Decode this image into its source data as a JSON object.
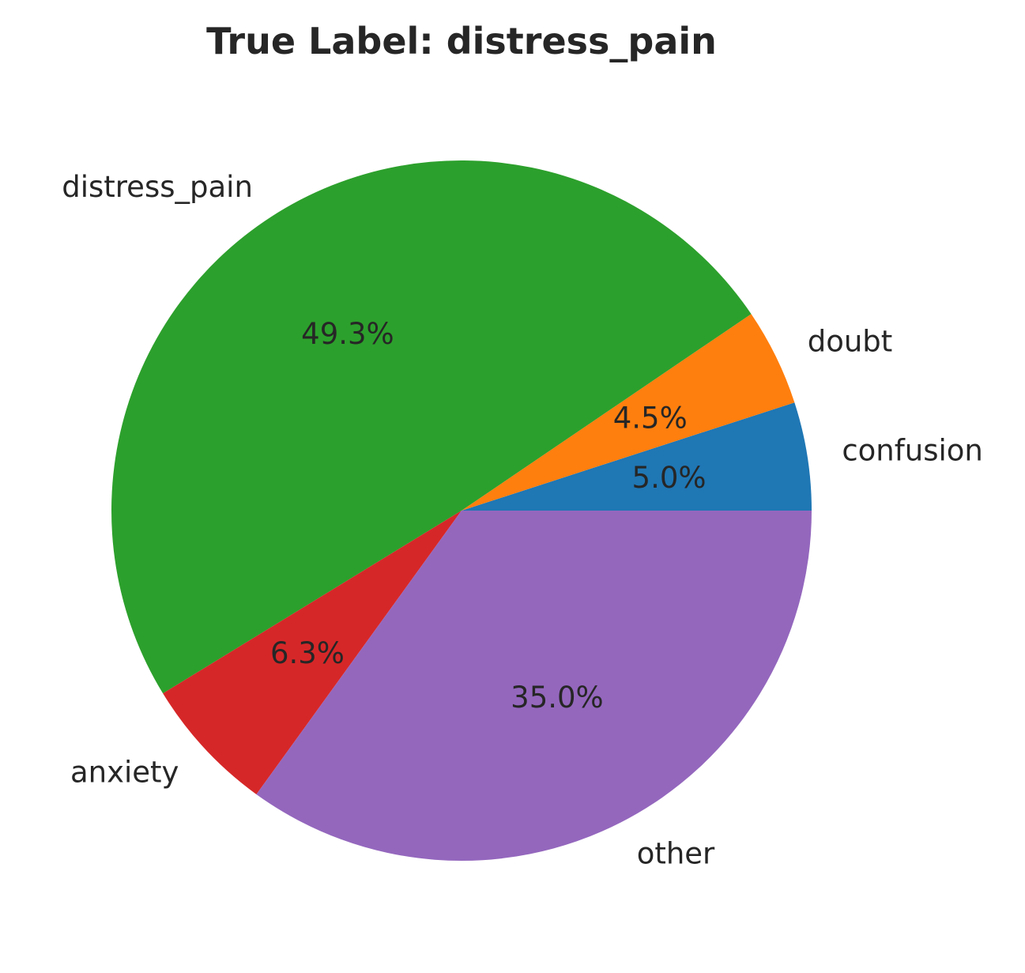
{
  "chart_data": {
    "type": "pie",
    "title": "True Label: distress_pain",
    "start_angle_deg": 0,
    "direction": "counterclockwise",
    "slices": [
      {
        "label": "confusion",
        "value": 5.0,
        "pct_label": "5.0%",
        "color": "#1f77b4"
      },
      {
        "label": "doubt",
        "value": 4.5,
        "pct_label": "4.5%",
        "color": "#ff7f0e"
      },
      {
        "label": "distress_pain",
        "value": 49.3,
        "pct_label": "49.3%",
        "color": "#2ca02c"
      },
      {
        "label": "anxiety",
        "value": 6.3,
        "pct_label": "6.3%",
        "color": "#d62728"
      },
      {
        "label": "other",
        "value": 35.0,
        "pct_label": "35.0%",
        "color": "#9467bd"
      }
    ]
  }
}
